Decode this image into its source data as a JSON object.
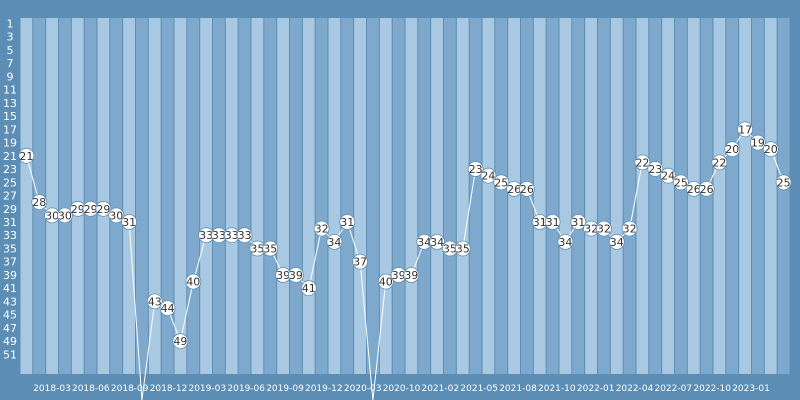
{
  "chart_data": {
    "type": "line",
    "title": "",
    "xlabel": "",
    "ylabel": "",
    "y_axis": "rank, inverted (1 at top)",
    "ylim": [
      52,
      1
    ],
    "yticks": [
      1,
      3,
      5,
      7,
      9,
      11,
      13,
      15,
      17,
      19,
      21,
      23,
      25,
      27,
      29,
      31,
      33,
      35,
      37,
      39,
      41,
      43,
      45,
      47,
      49,
      51
    ],
    "grid": "alternating vertical bands",
    "x_tick_labels": [
      "2018-03",
      "2018-06",
      "2018-09",
      "2018-12",
      "2019-03",
      "2019-06",
      "2019-09",
      "2019-12",
      "2020-03",
      "2020-10",
      "2021-02",
      "2021-05",
      "2021-08",
      "2021-10",
      "2022-01",
      "2022-04",
      "2022-07",
      "2022-10",
      "2023-01"
    ],
    "series": [
      {
        "values": [
          21,
          28,
          30,
          30,
          29,
          29,
          29,
          30,
          31,
          null,
          43,
          44,
          49,
          40,
          33,
          33,
          33,
          33,
          35,
          35,
          39,
          39,
          41,
          32,
          34,
          31,
          37,
          null,
          40,
          39,
          39,
          34,
          34,
          35,
          35,
          23,
          24,
          25,
          26,
          26,
          31,
          31,
          34,
          31,
          32,
          32,
          34,
          32,
          22,
          23,
          24,
          25,
          26,
          26,
          22,
          20,
          17,
          19,
          20,
          25
        ],
        "point_labels": [
          "21",
          "28",
          "30",
          "30",
          "29",
          "29",
          "29",
          "30",
          "31",
          "",
          "43",
          "44",
          "49",
          "40",
          "33",
          "33",
          "33",
          "33",
          "35",
          "35",
          "39",
          "39",
          "41",
          "32",
          "34",
          "31",
          "37",
          "",
          "40",
          "39",
          "39",
          "34",
          "34",
          "35",
          "35",
          "23",
          "24",
          "25",
          "26",
          "26",
          "31",
          "31",
          "34",
          "31",
          "32",
          "32",
          "34",
          "32",
          "22",
          "23",
          "24",
          "25",
          "26",
          "26",
          "22",
          "20",
          "17",
          "19",
          "20",
          "25"
        ]
      }
    ],
    "colors": {
      "background": "#5b8db5",
      "band_light": "#a9c8e1",
      "band_dark": "#7fa9cc",
      "line": "#ffffff",
      "marker_fill": "#ffffff",
      "label_text": "#333333",
      "axis_text": "#ffffff"
    }
  }
}
